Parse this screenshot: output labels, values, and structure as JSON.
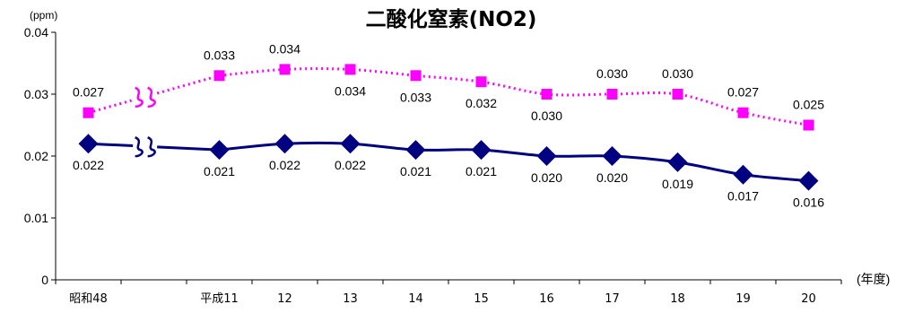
{
  "chart_data": {
    "type": "line",
    "title": "二酸化窒素(NO2)",
    "ylabel_unit": "(ppm)",
    "xlabel_unit": "(年度)",
    "ylim": [
      0,
      0.04
    ],
    "yticks": [
      "0",
      "0.01",
      "0.02",
      "0.03",
      "0.04"
    ],
    "categories": [
      "昭和48",
      "平成11",
      "12",
      "13",
      "14",
      "15",
      "16",
      "17",
      "18",
      "19",
      "20"
    ],
    "axis_break_between": [
      "昭和48",
      "平成11"
    ],
    "grid": false,
    "series": [
      {
        "color": "#ff00ff",
        "marker": "square",
        "line_style": "dotted",
        "values": [
          0.027,
          0.033,
          0.034,
          0.034,
          0.033,
          0.032,
          0.03,
          0.03,
          0.03,
          0.027,
          0.025
        ],
        "labels": [
          "0.027",
          "0.033",
          "0.034",
          "0.034",
          "0.033",
          "0.032",
          "0.030",
          "0.030",
          "0.030",
          "0.027",
          "0.025"
        ]
      },
      {
        "color": "#000080",
        "marker": "diamond",
        "line_style": "solid",
        "values": [
          0.022,
          0.021,
          0.022,
          0.022,
          0.021,
          0.021,
          0.02,
          0.02,
          0.019,
          0.017,
          0.016
        ],
        "labels": [
          "0.022",
          "0.021",
          "0.022",
          "0.022",
          "0.021",
          "0.021",
          "0.020",
          "0.020",
          "0.019",
          "0.017",
          "0.016"
        ]
      }
    ]
  }
}
